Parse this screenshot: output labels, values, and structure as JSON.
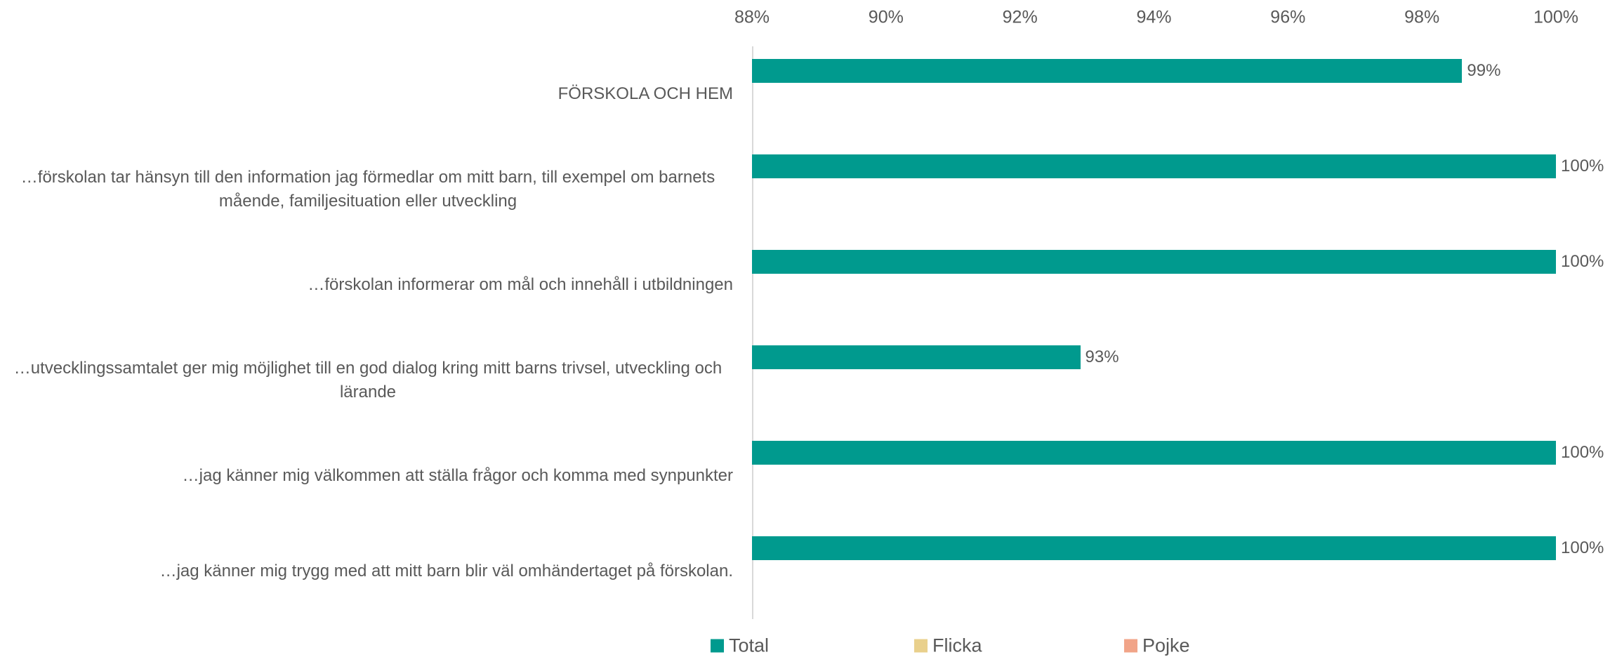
{
  "chart_data": {
    "type": "hbar",
    "categories": [
      "FÖRSKOLA OCH HEM",
      "…förskolan tar hänsyn till den information jag förmedlar om mitt barn, till exempel om barnets mående, familjesituation eller utveckling",
      "…förskolan informerar om mål och innehåll i utbildningen",
      "…utvecklingssamtalet ger mig möjlighet till en god dialog kring mitt barns trivsel, utveckling och lärande",
      "…jag känner mig välkommen att ställa frågor och komma med synpunkter",
      "…jag känner mig trygg med att mitt barn blir väl omhändertaget på förskolan."
    ],
    "series": [
      {
        "name": "Total",
        "color": "#009a8e",
        "values": [
          98.6,
          100,
          100,
          92.9,
          100,
          100
        ],
        "value_labels": [
          "99%",
          "100%",
          "100%",
          "93%",
          "100%",
          "100%"
        ]
      },
      {
        "name": "Flicka",
        "color": "#e9d08c",
        "values": [
          null,
          null,
          null,
          null,
          null,
          null
        ]
      },
      {
        "name": "Pojke",
        "color": "#f1a488",
        "values": [
          null,
          null,
          null,
          null,
          null,
          null
        ]
      }
    ],
    "xlim": [
      88,
      100
    ],
    "xticks": [
      {
        "value": 88,
        "label": "88%"
      },
      {
        "value": 90,
        "label": "90%"
      },
      {
        "value": 92,
        "label": "92%"
      },
      {
        "value": 94,
        "label": "94%"
      },
      {
        "value": 96,
        "label": "96%"
      },
      {
        "value": 98,
        "label": "98%"
      },
      {
        "value": 100,
        "label": "100%"
      }
    ],
    "legend": "bottom"
  }
}
